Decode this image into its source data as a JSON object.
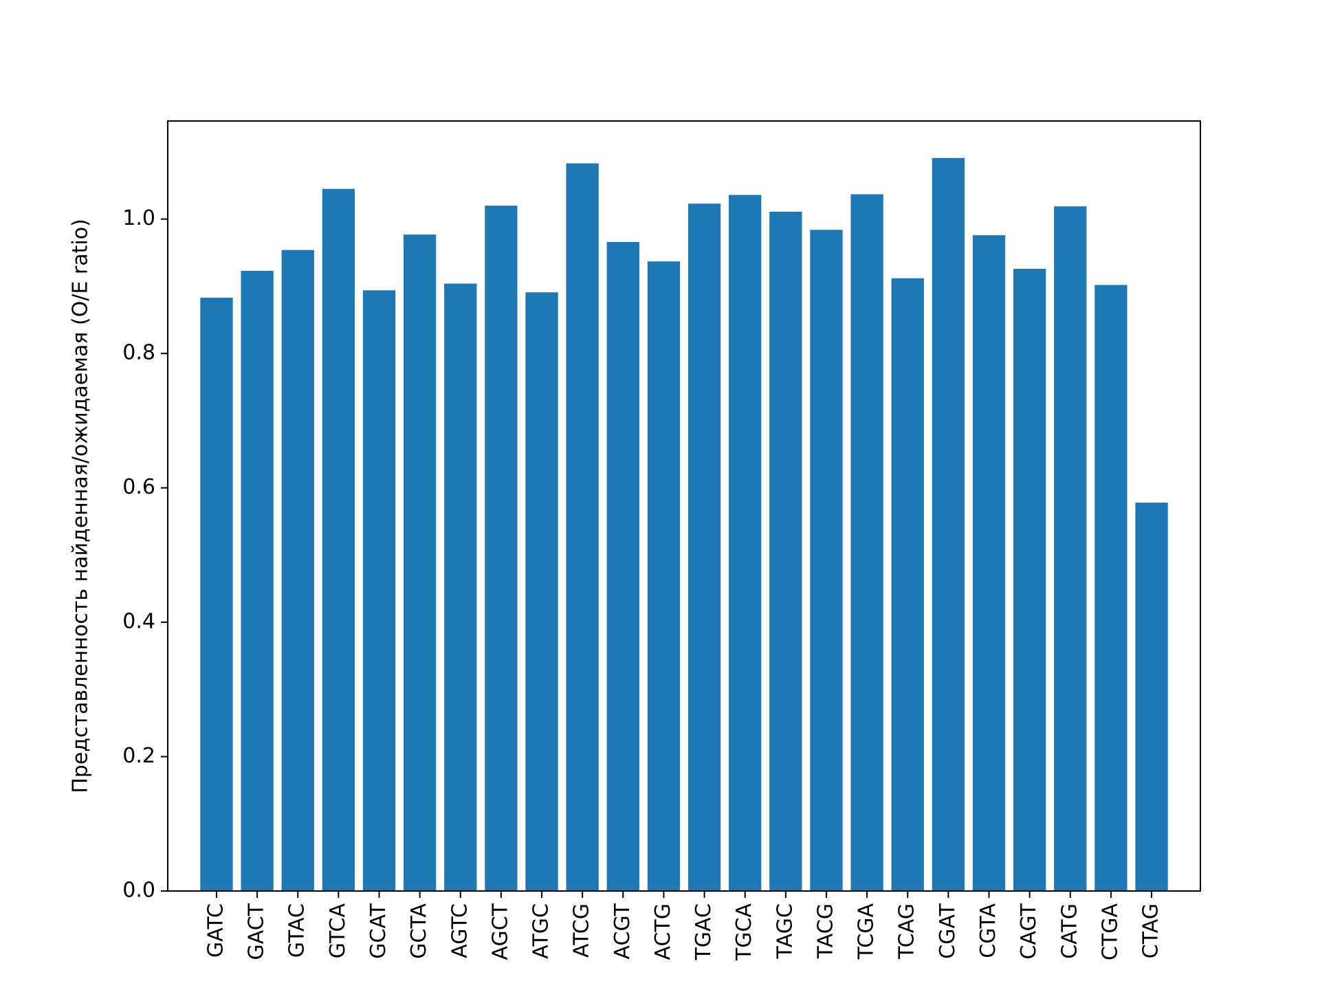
{
  "chart_data": {
    "type": "bar",
    "title": "",
    "xlabel": "",
    "ylabel": "Представленность найденная/ожидаемая (O/E ratio)",
    "categories": [
      "GATC",
      "GACT",
      "GTAC",
      "GTCA",
      "GCAT",
      "GCTA",
      "AGTC",
      "AGCT",
      "ATGC",
      "ATCG",
      "ACGT",
      "ACTG",
      "TGAC",
      "TGCA",
      "TAGC",
      "TACG",
      "TCGA",
      "TCAG",
      "CGAT",
      "CGTA",
      "CAGT",
      "CATG",
      "CTGA",
      "CTAG"
    ],
    "values": [
      0.883,
      0.923,
      0.954,
      1.045,
      0.894,
      0.977,
      0.904,
      1.02,
      0.891,
      1.083,
      0.966,
      0.937,
      1.023,
      1.036,
      1.011,
      0.984,
      1.037,
      0.912,
      1.091,
      0.976,
      0.926,
      1.019,
      0.902,
      0.578
    ],
    "ylim": [
      0,
      1.146
    ],
    "yticks": [
      "0.0",
      "0.2",
      "0.4",
      "0.6",
      "0.8",
      "1.0"
    ],
    "ytick_values": [
      0,
      0.2,
      0.4,
      0.6,
      0.8,
      1.0
    ],
    "bar_color": "#1f77b4",
    "grid": false,
    "legend": "none"
  }
}
